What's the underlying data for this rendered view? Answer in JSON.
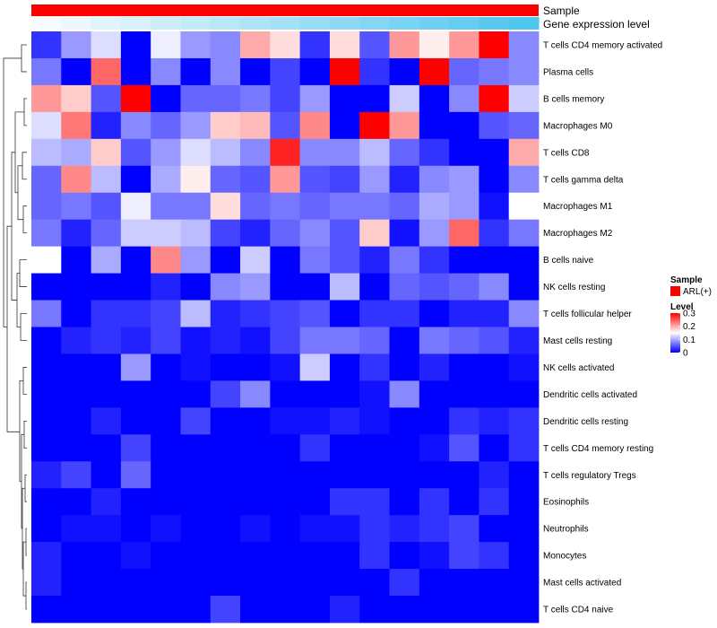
{
  "chart_data": {
    "type": "heatmap",
    "annotations": {
      "sample_label": "Sample",
      "expression_label": "Gene expression level",
      "sample_color": "#ff0000",
      "expression_trend": "increasing"
    },
    "rows": [
      "T cells CD4 memory activated",
      "Plasma cells",
      "B cells memory",
      "Macrophages M0",
      "T cells CD8",
      "T cells gamma delta",
      "Macrophages M1",
      "Macrophages M2",
      "B cells naive",
      "NK cells resting",
      "T cells follicular helper",
      "Mast cells resting",
      "NK cells activated",
      "Dendritic cells activated",
      "Dendritic cells resting",
      "T cells CD4 memory resting",
      "T cells regulatory  Tregs",
      "Eosinophils",
      "Neutrophils",
      "Monocytes",
      "Mast cells activated",
      "T cells CD4 naive"
    ],
    "n_columns": 17,
    "values": [
      [
        0.03,
        0.09,
        0.13,
        0.0,
        0.14,
        0.09,
        0.08,
        0.2,
        0.17,
        0.03,
        0.17,
        0.05,
        0.21,
        0.16,
        0.21,
        0.3,
        0.08
      ],
      [
        0.07,
        0.0,
        0.24,
        0.0,
        0.08,
        0.0,
        0.08,
        0.0,
        0.04,
        0.0,
        0.3,
        0.03,
        0.0,
        0.3,
        0.06,
        0.07,
        0.08
      ],
      [
        0.21,
        0.18,
        0.05,
        0.3,
        0.0,
        0.06,
        0.06,
        0.07,
        0.04,
        0.09,
        0.0,
        0.0,
        0.12,
        0.0,
        0.08,
        0.3,
        0.12
      ],
      [
        0.13,
        0.23,
        0.02,
        0.08,
        0.06,
        0.09,
        0.18,
        0.19,
        0.05,
        0.22,
        0.0,
        0.3,
        0.21,
        0.0,
        0.0,
        0.05,
        0.06
      ],
      [
        0.11,
        0.1,
        0.18,
        0.05,
        0.09,
        0.13,
        0.11,
        0.08,
        0.28,
        0.08,
        0.08,
        0.11,
        0.06,
        0.03,
        0.0,
        0.0,
        0.2
      ],
      [
        0.06,
        0.22,
        0.11,
        0.0,
        0.1,
        0.16,
        0.06,
        0.05,
        0.21,
        0.05,
        0.04,
        0.09,
        0.02,
        0.08,
        0.09,
        0.0,
        0.08
      ],
      [
        0.06,
        0.07,
        0.05,
        0.14,
        0.07,
        0.07,
        0.17,
        0.06,
        0.07,
        0.06,
        0.07,
        0.07,
        0.06,
        0.1,
        0.09,
        0.01,
        0.15
      ],
      [
        0.07,
        0.02,
        0.06,
        0.12,
        0.12,
        0.11,
        0.04,
        0.02,
        0.06,
        0.08,
        0.05,
        0.18,
        0.01,
        0.09,
        0.24,
        0.03,
        0.07
      ],
      [
        0.15,
        0.0,
        0.1,
        0.0,
        0.22,
        0.09,
        0.0,
        0.12,
        0.0,
        0.07,
        0.05,
        0.02,
        0.07,
        0.03,
        0.0,
        0.0,
        0.0
      ],
      [
        0.0,
        0.0,
        0.0,
        0.0,
        0.02,
        0.0,
        0.08,
        0.09,
        0.0,
        0.0,
        0.11,
        0.0,
        0.06,
        0.05,
        0.06,
        0.08,
        0.0
      ],
      [
        0.07,
        0.0,
        0.03,
        0.03,
        0.04,
        0.11,
        0.02,
        0.03,
        0.04,
        0.05,
        0.0,
        0.03,
        0.03,
        0.0,
        0.02,
        0.02,
        0.08
      ],
      [
        0.0,
        0.02,
        0.03,
        0.02,
        0.04,
        0.01,
        0.02,
        0.01,
        0.04,
        0.07,
        0.07,
        0.06,
        0.0,
        0.07,
        0.06,
        0.05,
        0.02
      ],
      [
        0.0,
        0.0,
        0.0,
        0.09,
        0.0,
        0.01,
        0.0,
        0.0,
        0.01,
        0.12,
        0.0,
        0.03,
        0.0,
        0.02,
        0.0,
        0.0,
        0.01
      ],
      [
        0.0,
        0.0,
        0.0,
        0.0,
        0.0,
        0.0,
        0.04,
        0.08,
        0.0,
        0.0,
        0.0,
        0.01,
        0.08,
        0.0,
        0.0,
        0.0,
        0.0
      ],
      [
        0.0,
        0.0,
        0.02,
        0.0,
        0.0,
        0.04,
        0.0,
        0.0,
        0.01,
        0.01,
        0.02,
        0.01,
        0.0,
        0.0,
        0.03,
        0.02,
        0.03
      ],
      [
        0.0,
        0.0,
        0.0,
        0.04,
        0.0,
        0.0,
        0.0,
        0.0,
        0.0,
        0.03,
        0.0,
        0.0,
        0.0,
        0.01,
        0.05,
        0.0,
        0.03
      ],
      [
        0.02,
        0.04,
        0.0,
        0.06,
        0.0,
        0.0,
        0.0,
        0.0,
        0.0,
        0.0,
        0.0,
        0.0,
        0.0,
        0.0,
        0.0,
        0.02,
        0.0
      ],
      [
        0.0,
        0.0,
        0.02,
        0.0,
        0.0,
        0.0,
        0.0,
        0.0,
        0.0,
        0.0,
        0.03,
        0.03,
        0.0,
        0.03,
        0.0,
        0.03,
        0.0
      ],
      [
        0.0,
        0.01,
        0.01,
        0.0,
        0.01,
        0.0,
        0.0,
        0.01,
        0.0,
        0.01,
        0.01,
        0.03,
        0.02,
        0.03,
        0.04,
        0.0,
        0.0
      ],
      [
        0.02,
        0.0,
        0.0,
        0.01,
        0.0,
        0.0,
        0.0,
        0.0,
        0.0,
        0.0,
        0.0,
        0.03,
        0.0,
        0.01,
        0.04,
        0.03,
        0.0
      ],
      [
        0.02,
        0.0,
        0.0,
        0.0,
        0.0,
        0.0,
        0.0,
        0.0,
        0.0,
        0.0,
        0.0,
        0.0,
        0.03,
        0.0,
        0.0,
        0.0,
        0.0
      ],
      [
        0.0,
        0.0,
        0.0,
        0.0,
        0.0,
        0.0,
        0.04,
        0.0,
        0.0,
        0.0,
        0.02,
        0.0,
        0.0,
        0.0,
        0.0,
        0.0,
        0.0
      ]
    ],
    "color_scale": {
      "range": [
        0,
        0.3
      ],
      "low_color": "#0000ff",
      "mid_color": "#ffffff",
      "high_color": "#ff0000",
      "mid_value": 0.15
    },
    "legend": {
      "sample_title": "Sample",
      "sample_entry": "ARL(+)",
      "level_title": "Level",
      "level_ticks": [
        "0.3",
        "0.2",
        "0.1",
        "0"
      ],
      "level_tick_values": [
        0.3,
        0.2,
        0.1,
        0
      ]
    }
  }
}
